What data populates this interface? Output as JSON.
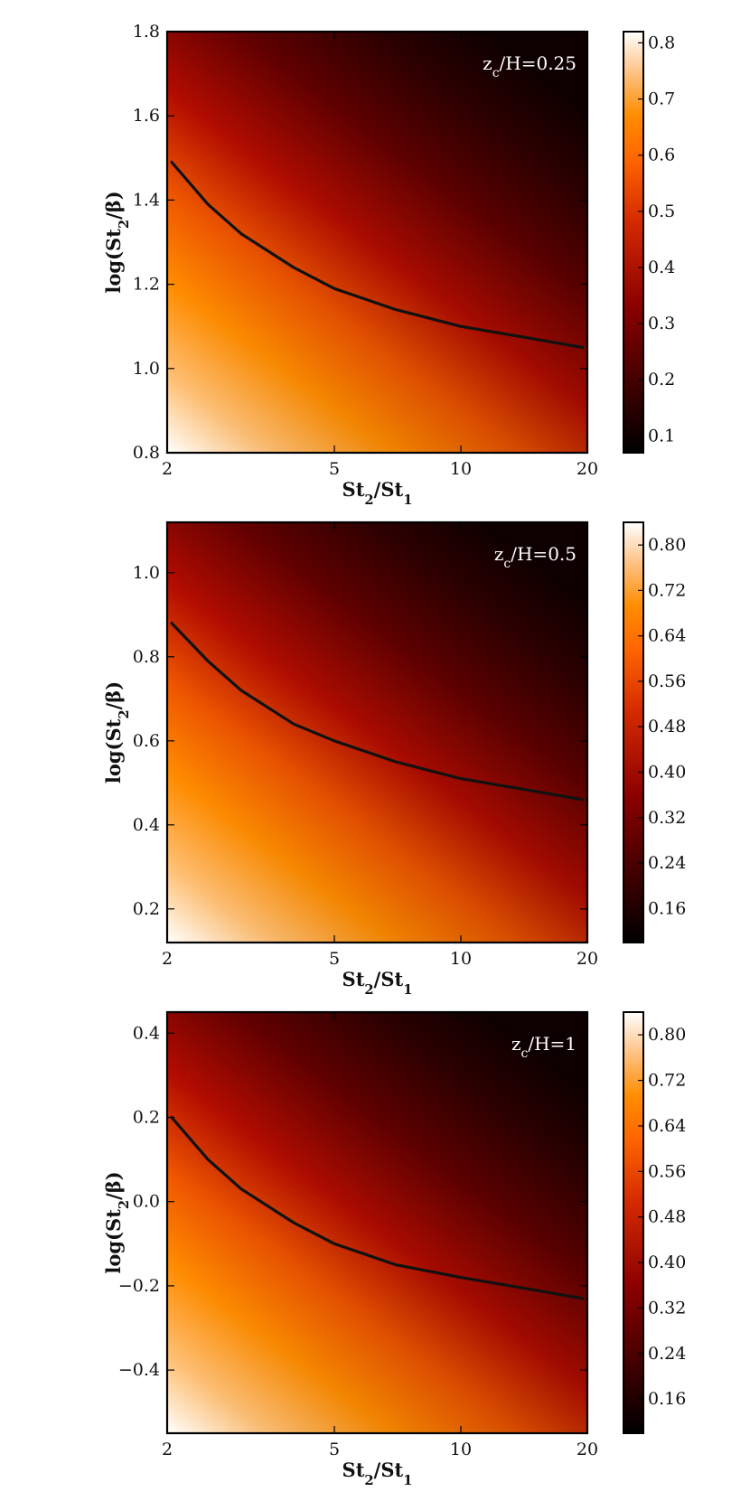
{
  "chart_data": [
    {
      "type": "heatmap",
      "annotation": "z_c/H=0.25",
      "xlabel": "St_2/St_1",
      "ylabel": "log(St_2/β)",
      "x_scale": "log",
      "xlim": [
        2,
        20
      ],
      "ylim": [
        0.8,
        1.8
      ],
      "x_ticks": [
        2,
        5,
        10,
        20
      ],
      "y_ticks": [
        0.8,
        1.0,
        1.2,
        1.4,
        1.6,
        1.8
      ],
      "y_tick_labels": [
        "0.8",
        "1.0",
        "1.2",
        "1.4",
        "1.6",
        "1.8"
      ],
      "colorbar": {
        "min": 0.07,
        "max": 0.82,
        "ticks": [
          0.1,
          0.2,
          0.3,
          0.4,
          0.5,
          0.6,
          0.7,
          0.8
        ],
        "tick_labels": [
          "0.1",
          "0.2",
          "0.3",
          "0.4",
          "0.5",
          "0.6",
          "0.7",
          "0.8"
        ]
      },
      "curve": {
        "x": [
          2.05,
          2.5,
          3,
          4,
          5,
          7,
          10,
          15,
          19.5
        ],
        "y": [
          1.49,
          1.39,
          1.32,
          1.24,
          1.19,
          1.14,
          1.1,
          1.07,
          1.05
        ]
      }
    },
    {
      "type": "heatmap",
      "annotation": "z_c/H=0.5",
      "xlabel": "St_2/St_1",
      "ylabel": "log(St_2/β)",
      "x_scale": "log",
      "xlim": [
        2,
        20
      ],
      "ylim": [
        0.12,
        1.12
      ],
      "x_ticks": [
        2,
        5,
        10,
        20
      ],
      "y_ticks": [
        0.2,
        0.4,
        0.6,
        0.8,
        1.0
      ],
      "y_tick_labels": [
        "0.2",
        "0.4",
        "0.6",
        "0.8",
        "1.0"
      ],
      "colorbar": {
        "min": 0.1,
        "max": 0.84,
        "ticks": [
          0.16,
          0.24,
          0.32,
          0.4,
          0.48,
          0.56,
          0.64,
          0.72,
          0.8
        ],
        "tick_labels": [
          "0.16",
          "0.24",
          "0.32",
          "0.40",
          "0.48",
          "0.56",
          "0.64",
          "0.72",
          "0.80"
        ]
      },
      "curve": {
        "x": [
          2.05,
          2.5,
          3,
          4,
          5,
          7,
          10,
          15,
          19.5
        ],
        "y": [
          0.88,
          0.79,
          0.72,
          0.64,
          0.6,
          0.55,
          0.51,
          0.48,
          0.46
        ]
      }
    },
    {
      "type": "heatmap",
      "annotation": "z_c/H=1",
      "xlabel": "St_2/St_1",
      "ylabel": "log(St_2/β)",
      "x_scale": "log",
      "xlim": [
        2,
        20
      ],
      "ylim": [
        -0.55,
        0.45
      ],
      "x_ticks": [
        2,
        5,
        10,
        20
      ],
      "y_ticks": [
        -0.4,
        -0.2,
        0.0,
        0.2,
        0.4
      ],
      "y_tick_labels": [
        "−0.4",
        "−0.2",
        "0.0",
        "0.2",
        "0.4"
      ],
      "colorbar": {
        "min": 0.1,
        "max": 0.84,
        "ticks": [
          0.16,
          0.24,
          0.32,
          0.4,
          0.48,
          0.56,
          0.64,
          0.72,
          0.8
        ],
        "tick_labels": [
          "0.16",
          "0.24",
          "0.32",
          "0.40",
          "0.48",
          "0.56",
          "0.64",
          "0.72",
          "0.80"
        ]
      },
      "curve": {
        "x": [
          2.05,
          2.5,
          3,
          4,
          5,
          7,
          10,
          15,
          19.5
        ],
        "y": [
          0.2,
          0.1,
          0.03,
          -0.05,
          -0.1,
          -0.15,
          -0.18,
          -0.21,
          -0.23
        ]
      }
    }
  ]
}
